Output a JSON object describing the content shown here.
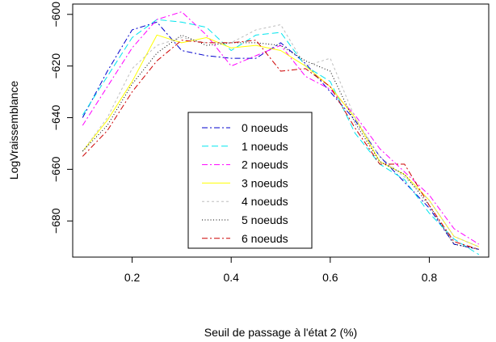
{
  "chart_data": {
    "type": "line",
    "xlabel": "Seuil de passage à l'état 2 (%)",
    "ylabel": "LogVraissemblance",
    "xlim": [
      0.08,
      0.92
    ],
    "ylim": [
      -694,
      -596
    ],
    "xticks": [
      0.2,
      0.4,
      0.6,
      0.8
    ],
    "yticks": [
      -680,
      -660,
      -640,
      -620,
      -600
    ],
    "x_tick_labels": [
      "0.2",
      "0.4",
      "0.6",
      "0.8"
    ],
    "y_tick_labels": [
      "−680",
      "−660",
      "−640",
      "−620",
      "−600"
    ],
    "legend_position": "center",
    "x": [
      0.1,
      0.15,
      0.2,
      0.25,
      0.3,
      0.35,
      0.4,
      0.45,
      0.5,
      0.55,
      0.6,
      0.65,
      0.7,
      0.75,
      0.8,
      0.85,
      0.9
    ],
    "series": [
      {
        "name": "0 noeuds",
        "color": "#0000CD",
        "dash": "7 3 2 3",
        "values": [
          -640,
          -622,
          -606,
          -603,
          -614,
          -616,
          -617,
          -617,
          -611,
          -619,
          -630,
          -641,
          -655,
          -665,
          -675,
          -689,
          -691
        ]
      },
      {
        "name": "1 noeuds",
        "color": "#00E5EE",
        "dash": "8 4",
        "values": [
          -639,
          -624,
          -609,
          -602,
          -603,
          -605,
          -614,
          -608,
          -607,
          -620,
          -626,
          -646,
          -658,
          -664,
          -677,
          -687,
          -693
        ]
      },
      {
        "name": "2 noeuds",
        "color": "#FF00FF",
        "dash": "7 3 2 3",
        "values": [
          -643,
          -628,
          -613,
          -602,
          -599,
          -608,
          -620,
          -616,
          -612,
          -624,
          -629,
          -639,
          -652,
          -661,
          -670,
          -683,
          -689
        ]
      },
      {
        "name": "3 noeuds",
        "color": "#FFFF00",
        "dash": "",
        "values": [
          -653,
          -641,
          -626,
          -608,
          -611,
          -609,
          -613,
          -612,
          -614,
          -620,
          -628,
          -640,
          -657,
          -662,
          -672,
          -686,
          -690
        ]
      },
      {
        "name": "4 noeuds",
        "color": "#BEBEBE",
        "dash": "3 3",
        "values": [
          -653,
          -640,
          -621,
          -612,
          -609,
          -611,
          -611,
          -606,
          -604,
          -620,
          -617,
          -640,
          -655,
          -663,
          -672,
          -686,
          -690
        ]
      },
      {
        "name": "5 noeuds",
        "color": "#000000",
        "dash": "1 2.5",
        "values": [
          -653,
          -643,
          -627,
          -615,
          -608,
          -612,
          -611,
          -611,
          -612,
          -618,
          -622,
          -642,
          -657,
          -662,
          -674,
          -689,
          -691
        ]
      },
      {
        "name": "6 noeuds",
        "color": "#CD0000",
        "dash": "7 3 2 3",
        "values": [
          -655,
          -645,
          -630,
          -618,
          -610,
          -611,
          -611,
          -610,
          -622,
          -621,
          -628,
          -644,
          -658,
          -658,
          -674,
          -688,
          -691
        ]
      }
    ]
  }
}
